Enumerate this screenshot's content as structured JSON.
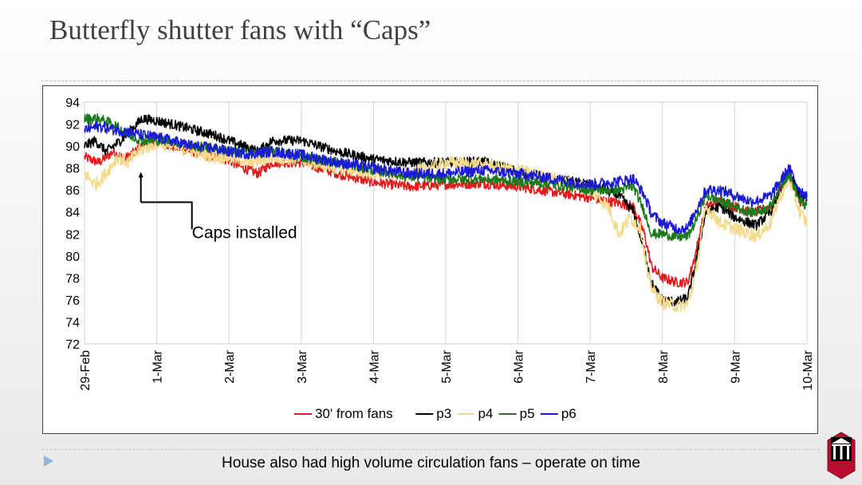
{
  "slide": {
    "title": "Butterfly shutter fans with “Caps”",
    "footer": "House also had high volume circulation fans – operate on time"
  },
  "chart_data": {
    "type": "line",
    "title": "",
    "xlabel": "",
    "ylabel": "",
    "ylim": [
      72,
      94
    ],
    "yticks": [
      72,
      74,
      76,
      78,
      80,
      82,
      84,
      86,
      88,
      90,
      92,
      94
    ],
    "xlim": [
      0,
      10
    ],
    "xticks": [
      "29-Feb",
      "1-Mar",
      "2-Mar",
      "3-Mar",
      "4-Mar",
      "5-Mar",
      "6-Mar",
      "7-Mar",
      "8-Mar",
      "9-Mar",
      "10-Mar"
    ],
    "grid": "vertical",
    "legend_position": "bottom",
    "annotation": {
      "text": "Caps installed",
      "x": 0.78,
      "y": 87.5
    },
    "series": [
      {
        "name": "30' from fans",
        "color": "#e01b1b",
        "x": [
          0,
          0.2,
          0.4,
          0.55,
          0.7,
          0.8,
          1.0,
          1.2,
          1.5,
          1.8,
          2.0,
          2.2,
          2.4,
          2.5,
          2.6,
          3.0,
          3.5,
          4.0,
          4.5,
          5.0,
          5.5,
          6.0,
          6.5,
          7.0,
          7.4,
          7.6,
          7.75,
          7.85,
          8.0,
          8.2,
          8.35,
          8.45,
          8.6,
          8.8,
          9.0,
          9.2,
          9.3,
          9.5,
          9.6,
          9.75,
          9.9,
          10.0
        ],
        "values": [
          89.0,
          88.5,
          89.5,
          88.8,
          89.5,
          90.0,
          90.5,
          90.0,
          89.5,
          89.0,
          88.7,
          88.0,
          87.5,
          88.0,
          88.5,
          88.5,
          87.5,
          86.7,
          86.3,
          86.5,
          86.6,
          86.3,
          85.8,
          85.3,
          84.8,
          84.5,
          82.0,
          79.0,
          78.0,
          77.6,
          77.6,
          80.0,
          84.5,
          85.0,
          84.5,
          84.0,
          84.0,
          84.5,
          85.5,
          87.5,
          85.0,
          84.5
        ]
      },
      {
        "name": "p3",
        "color": "#000000",
        "x": [
          0,
          0.15,
          0.3,
          0.5,
          0.65,
          0.8,
          1.0,
          1.2,
          1.5,
          1.8,
          2.0,
          2.2,
          2.4,
          2.6,
          3.0,
          3.5,
          4.0,
          4.5,
          5.0,
          5.5,
          6.0,
          6.5,
          7.0,
          7.4,
          7.6,
          7.75,
          7.85,
          8.0,
          8.2,
          8.35,
          8.45,
          8.6,
          8.8,
          9.0,
          9.2,
          9.3,
          9.5,
          9.6,
          9.75,
          9.9,
          10.0
        ],
        "values": [
          90.0,
          90.5,
          89.5,
          90.5,
          91.5,
          92.5,
          92.3,
          92.0,
          91.5,
          91.0,
          90.5,
          90.0,
          89.5,
          90.5,
          90.5,
          89.5,
          88.8,
          88.5,
          88.5,
          88.6,
          87.7,
          87.0,
          86.5,
          85.5,
          84.0,
          80.5,
          77.5,
          76.0,
          75.8,
          76.2,
          79.0,
          84.0,
          84.5,
          83.5,
          83.0,
          82.8,
          84.0,
          85.5,
          87.5,
          85.5,
          85.0
        ]
      },
      {
        "name": "p4",
        "color": "#f3da8c",
        "x": [
          0,
          0.15,
          0.3,
          0.45,
          0.6,
          0.75,
          0.9,
          1.0,
          1.2,
          1.5,
          1.8,
          2.0,
          2.3,
          2.6,
          3.0,
          3.5,
          4.0,
          4.5,
          5.0,
          5.5,
          6.0,
          6.5,
          7.0,
          7.25,
          7.4,
          7.55,
          7.7,
          7.8,
          7.9,
          8.0,
          8.2,
          8.35,
          8.45,
          8.6,
          8.8,
          9.0,
          9.2,
          9.3,
          9.5,
          9.6,
          9.75,
          9.9,
          10.0
        ],
        "values": [
          87.5,
          86.5,
          87.5,
          89.0,
          88.5,
          89.5,
          90.0,
          90.3,
          90.0,
          89.5,
          89.0,
          89.0,
          88.5,
          89.0,
          88.7,
          88.0,
          87.5,
          87.5,
          88.5,
          88.3,
          87.8,
          87.0,
          86.0,
          84.5,
          82.0,
          83.5,
          82.5,
          78.0,
          76.5,
          75.8,
          75.4,
          75.6,
          78.0,
          84.5,
          83.0,
          82.5,
          82.0,
          81.8,
          83.0,
          85.0,
          87.0,
          84.0,
          83.0
        ]
      },
      {
        "name": "p5",
        "color": "#1b7a1b",
        "x": [
          0,
          0.2,
          0.4,
          0.6,
          0.8,
          1.0,
          1.2,
          1.5,
          1.8,
          2.0,
          2.3,
          2.6,
          3.0,
          3.5,
          4.0,
          4.5,
          5.0,
          5.5,
          6.0,
          6.5,
          7.0,
          7.4,
          7.6,
          7.75,
          7.85,
          8.0,
          8.2,
          8.35,
          8.45,
          8.6,
          8.8,
          9.0,
          9.2,
          9.3,
          9.5,
          9.6,
          9.75,
          9.9,
          10.0
        ],
        "values": [
          92.5,
          92.5,
          92.0,
          91.0,
          90.5,
          90.5,
          90.5,
          90.0,
          89.8,
          89.5,
          89.3,
          89.5,
          89.0,
          88.5,
          87.8,
          87.2,
          87.0,
          87.0,
          86.8,
          86.5,
          86.0,
          86.0,
          86.3,
          84.0,
          82.0,
          82.0,
          81.7,
          81.8,
          83.0,
          85.5,
          85.0,
          84.5,
          84.0,
          84.0,
          84.5,
          86.0,
          87.5,
          85.0,
          84.5
        ]
      },
      {
        "name": "p6",
        "color": "#1b1bd6",
        "x": [
          0,
          0.2,
          0.4,
          0.6,
          0.8,
          1.0,
          1.2,
          1.5,
          1.8,
          2.0,
          2.3,
          2.6,
          3.0,
          3.5,
          4.0,
          4.5,
          5.0,
          5.5,
          6.0,
          6.5,
          7.0,
          7.4,
          7.6,
          7.75,
          7.85,
          8.0,
          8.2,
          8.35,
          8.45,
          8.6,
          8.8,
          9.0,
          9.2,
          9.3,
          9.5,
          9.6,
          9.75,
          9.9,
          10.0
        ],
        "values": [
          91.5,
          91.8,
          91.5,
          91.3,
          91.0,
          90.8,
          90.5,
          90.0,
          89.8,
          89.5,
          89.3,
          89.5,
          89.2,
          88.5,
          88.0,
          87.5,
          87.5,
          87.8,
          87.5,
          87.0,
          86.5,
          86.8,
          87.0,
          85.5,
          83.8,
          83.0,
          82.5,
          82.5,
          84.0,
          86.0,
          86.0,
          85.5,
          85.0,
          85.0,
          85.5,
          86.5,
          88.0,
          86.0,
          85.5
        ]
      }
    ]
  }
}
